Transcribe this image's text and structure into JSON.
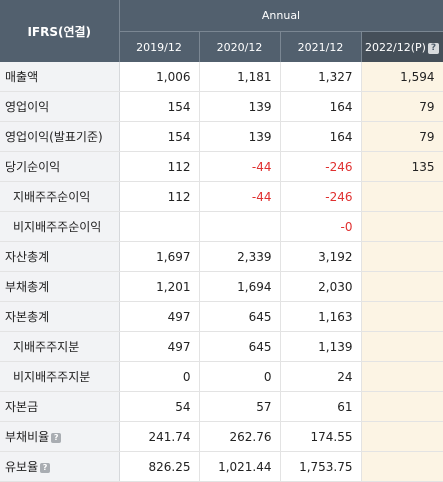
{
  "header": {
    "corner": "IFRS(연결)",
    "group": "Annual",
    "periods": [
      "2019/12",
      "2020/12",
      "2021/12",
      "2022/12(P)"
    ]
  },
  "rows": [
    {
      "label": "매출액",
      "values": [
        "1,006",
        "1,181",
        "1,327",
        "1,594"
      ]
    },
    {
      "label": "영업이익",
      "values": [
        "154",
        "139",
        "164",
        "79"
      ]
    },
    {
      "label": "영업이익(발표기준)",
      "values": [
        "154",
        "139",
        "164",
        "79"
      ]
    },
    {
      "label": "당기순이익",
      "values": [
        "112",
        "-44",
        "-246",
        "135"
      ]
    },
    {
      "label": "지배주주순이익",
      "values": [
        "112",
        "-44",
        "-246",
        ""
      ]
    },
    {
      "label": "비지배주주순이익",
      "values": [
        "",
        "",
        "-0",
        ""
      ]
    },
    {
      "label": "자산총계",
      "values": [
        "1,697",
        "2,339",
        "3,192",
        ""
      ]
    },
    {
      "label": "부채총계",
      "values": [
        "1,201",
        "1,694",
        "2,030",
        ""
      ]
    },
    {
      "label": "자본총계",
      "values": [
        "497",
        "645",
        "1,163",
        ""
      ]
    },
    {
      "label": "지배주주지분",
      "values": [
        "497",
        "645",
        "1,139",
        ""
      ]
    },
    {
      "label": "비지배주주지분",
      "values": [
        "0",
        "0",
        "24",
        ""
      ]
    },
    {
      "label": "자본금",
      "values": [
        "54",
        "57",
        "61",
        ""
      ]
    },
    {
      "label": "부채비율",
      "values": [
        "241.74",
        "262.76",
        "174.55",
        ""
      ]
    },
    {
      "label": "유보율",
      "values": [
        "826.25",
        "1,021.44",
        "1,753.75",
        ""
      ]
    }
  ],
  "icons": {
    "help": "?"
  },
  "colors": {
    "header_bg": "#52606e",
    "estimate_bg": "#fcf4e4",
    "negative": "#e03030",
    "label_bg": "#f2f3f5"
  }
}
